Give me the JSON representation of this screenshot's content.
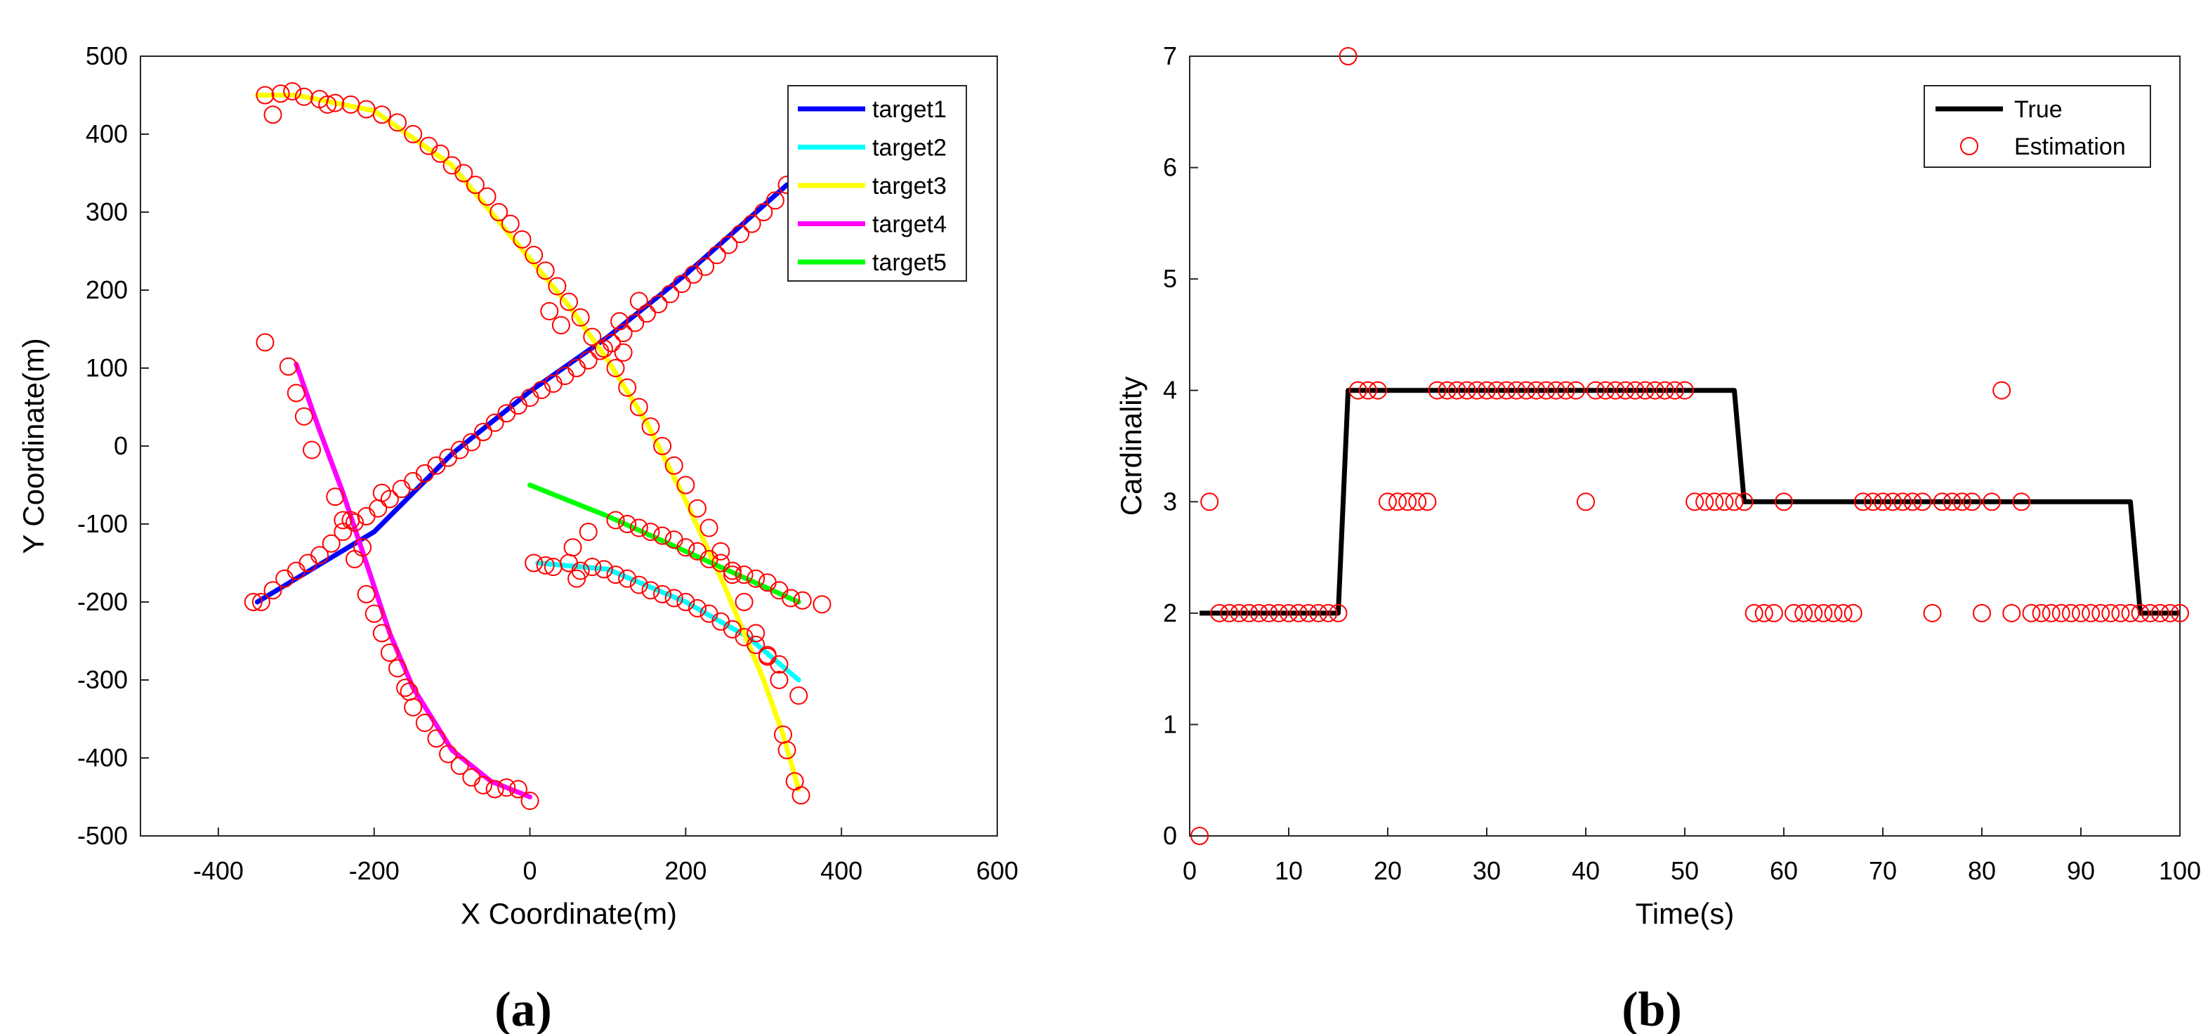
{
  "chart_data": [
    {
      "id": "a",
      "type": "scatter",
      "caption": "(a)",
      "xlabel": "X Coordinate(m)",
      "ylabel": "Y Coordinate(m)",
      "xlim": [
        -500,
        600
      ],
      "ylim": [
        -500,
        500
      ],
      "xticks": [
        -400,
        -200,
        0,
        200,
        400,
        600
      ],
      "yticks": [
        -500,
        -400,
        -300,
        -200,
        -100,
        0,
        100,
        200,
        300,
        400,
        500
      ],
      "legend": {
        "position": "top-right",
        "entries": [
          "target1",
          "target2",
          "target3",
          "target4",
          "target5"
        ]
      },
      "lines": [
        {
          "name": "target1",
          "color": "#0000ff",
          "points": [
            [
              -350,
              -200
            ],
            [
              -200,
              -110
            ],
            [
              -100,
              -10
            ],
            [
              0,
              70
            ],
            [
              100,
              140
            ],
            [
              200,
              220
            ],
            [
              330,
              335
            ]
          ]
        },
        {
          "name": "target2",
          "color": "#00ffff",
          "points": [
            [
              10,
              -150
            ],
            [
              100,
              -158
            ],
            [
              200,
              -200
            ],
            [
              280,
              -245
            ],
            [
              345,
              -300
            ]
          ]
        },
        {
          "name": "target3",
          "color": "#ffff00",
          "points": [
            [
              -350,
              450
            ],
            [
              -300,
              450
            ],
            [
              -200,
              430
            ],
            [
              -100,
              360
            ],
            [
              0,
              240
            ],
            [
              50,
              180
            ],
            [
              100,
              110
            ],
            [
              150,
              30
            ],
            [
              200,
              -70
            ],
            [
              250,
              -180
            ],
            [
              300,
              -300
            ],
            [
              325,
              -370
            ],
            [
              345,
              -440
            ]
          ]
        },
        {
          "name": "target4",
          "color": "#ff00ff",
          "points": [
            [
              -300,
              105
            ],
            [
              -270,
              20
            ],
            [
              -240,
              -60
            ],
            [
              -210,
              -150
            ],
            [
              -180,
              -240
            ],
            [
              -150,
              -310
            ],
            [
              -100,
              -390
            ],
            [
              -50,
              -430
            ],
            [
              0,
              -450
            ]
          ]
        },
        {
          "name": "target5",
          "color": "#00ff00",
          "points": [
            [
              0,
              -50
            ],
            [
              100,
              -90
            ],
            [
              200,
              -135
            ],
            [
              300,
              -180
            ],
            [
              345,
              -200
            ]
          ]
        }
      ],
      "estimates": {
        "name": "Estimation",
        "color": "#ff0000",
        "points": [
          [
            -345,
            -200
          ],
          [
            -330,
            -185
          ],
          [
            -315,
            -170
          ],
          [
            -300,
            -160
          ],
          [
            -285,
            -150
          ],
          [
            -270,
            -140
          ],
          [
            -255,
            -125
          ],
          [
            -240,
            -110
          ],
          [
            -225,
            -98
          ],
          [
            -210,
            -90
          ],
          [
            -195,
            -80
          ],
          [
            -180,
            -68
          ],
          [
            -165,
            -55
          ],
          [
            -150,
            -45
          ],
          [
            -135,
            -35
          ],
          [
            -120,
            -25
          ],
          [
            -105,
            -15
          ],
          [
            -90,
            -5
          ],
          [
            -75,
            5
          ],
          [
            -60,
            18
          ],
          [
            -45,
            30
          ],
          [
            -30,
            42
          ],
          [
            -15,
            52
          ],
          [
            0,
            62
          ],
          [
            15,
            72
          ],
          [
            30,
            80
          ],
          [
            45,
            90
          ],
          [
            60,
            100
          ],
          [
            75,
            110
          ],
          [
            90,
            122
          ],
          [
            105,
            132
          ],
          [
            120,
            145
          ],
          [
            135,
            158
          ],
          [
            150,
            170
          ],
          [
            165,
            182
          ],
          [
            180,
            195
          ],
          [
            195,
            208
          ],
          [
            210,
            220
          ],
          [
            225,
            230
          ],
          [
            240,
            245
          ],
          [
            255,
            258
          ],
          [
            270,
            272
          ],
          [
            285,
            285
          ],
          [
            300,
            300
          ],
          [
            315,
            315
          ],
          [
            330,
            335
          ],
          [
            -355,
            -200
          ],
          [
            -215,
            -130
          ],
          [
            -190,
            -60
          ],
          [
            -230,
            -95
          ],
          [
            -340,
            450
          ],
          [
            -320,
            452
          ],
          [
            -305,
            455
          ],
          [
            -290,
            448
          ],
          [
            -270,
            445
          ],
          [
            -250,
            440
          ],
          [
            -230,
            438
          ],
          [
            -210,
            432
          ],
          [
            -190,
            425
          ],
          [
            -170,
            415
          ],
          [
            -150,
            400
          ],
          [
            -130,
            385
          ],
          [
            -115,
            375
          ],
          [
            -100,
            360
          ],
          [
            -85,
            350
          ],
          [
            -70,
            335
          ],
          [
            -55,
            320
          ],
          [
            -40,
            300
          ],
          [
            -25,
            285
          ],
          [
            -10,
            265
          ],
          [
            5,
            245
          ],
          [
            20,
            225
          ],
          [
            35,
            205
          ],
          [
            50,
            185
          ],
          [
            65,
            165
          ],
          [
            80,
            140
          ],
          [
            95,
            125
          ],
          [
            110,
            100
          ],
          [
            125,
            75
          ],
          [
            140,
            50
          ],
          [
            155,
            25
          ],
          [
            170,
            0
          ],
          [
            185,
            -25
          ],
          [
            200,
            -50
          ],
          [
            215,
            -80
          ],
          [
            230,
            -105
          ],
          [
            245,
            -135
          ],
          [
            260,
            -165
          ],
          [
            275,
            -200
          ],
          [
            290,
            -240
          ],
          [
            305,
            -270
          ],
          [
            320,
            -300
          ],
          [
            325,
            -370
          ],
          [
            330,
            -390
          ],
          [
            340,
            -430
          ],
          [
            348,
            -448
          ],
          [
            -330,
            425
          ],
          [
            -260,
            438
          ],
          [
            25,
            173
          ],
          [
            140,
            186
          ],
          [
            40,
            155
          ],
          [
            115,
            160
          ],
          [
            120,
            120
          ],
          [
            -340,
            133
          ],
          [
            -310,
            102
          ],
          [
            -300,
            68
          ],
          [
            -290,
            38
          ],
          [
            -280,
            -5
          ],
          [
            -250,
            -65
          ],
          [
            -240,
            -95
          ],
          [
            -225,
            -145
          ],
          [
            -210,
            -190
          ],
          [
            -200,
            -215
          ],
          [
            -190,
            -240
          ],
          [
            -180,
            -265
          ],
          [
            -170,
            -285
          ],
          [
            -160,
            -310
          ],
          [
            -150,
            -335
          ],
          [
            -135,
            -355
          ],
          [
            -120,
            -375
          ],
          [
            -105,
            -395
          ],
          [
            -90,
            -410
          ],
          [
            -75,
            -425
          ],
          [
            -60,
            -435
          ],
          [
            -45,
            -440
          ],
          [
            -30,
            -438
          ],
          [
            -15,
            -440
          ],
          [
            0,
            -455
          ],
          [
            -155,
            -315
          ],
          [
            5,
            -150
          ],
          [
            20,
            -153
          ],
          [
            30,
            -155
          ],
          [
            50,
            -150
          ],
          [
            65,
            -160
          ],
          [
            80,
            -155
          ],
          [
            95,
            -158
          ],
          [
            110,
            -165
          ],
          [
            125,
            -170
          ],
          [
            140,
            -178
          ],
          [
            155,
            -185
          ],
          [
            170,
            -190
          ],
          [
            185,
            -195
          ],
          [
            200,
            -200
          ],
          [
            215,
            -208
          ],
          [
            230,
            -215
          ],
          [
            245,
            -225
          ],
          [
            260,
            -235
          ],
          [
            275,
            -245
          ],
          [
            290,
            -255
          ],
          [
            305,
            -268
          ],
          [
            320,
            -280
          ],
          [
            345,
            -320
          ],
          [
            60,
            -170
          ],
          [
            55,
            -130
          ],
          [
            75,
            -110
          ],
          [
            110,
            -95
          ],
          [
            125,
            -100
          ],
          [
            140,
            -105
          ],
          [
            155,
            -110
          ],
          [
            170,
            -115
          ],
          [
            185,
            -120
          ],
          [
            200,
            -130
          ],
          [
            215,
            -135
          ],
          [
            230,
            -145
          ],
          [
            245,
            -150
          ],
          [
            260,
            -160
          ],
          [
            275,
            -165
          ],
          [
            290,
            -170
          ],
          [
            305,
            -175
          ],
          [
            320,
            -185
          ],
          [
            335,
            -195
          ],
          [
            350,
            -198
          ],
          [
            375,
            -203
          ]
        ]
      }
    },
    {
      "id": "b",
      "type": "line",
      "caption": "(b)",
      "xlabel": "Time(s)",
      "ylabel": "Cardinality",
      "xlim": [
        0,
        100
      ],
      "ylim": [
        0,
        7
      ],
      "xticks": [
        0,
        10,
        20,
        30,
        40,
        50,
        60,
        70,
        80,
        90,
        100
      ],
      "yticks": [
        0,
        1,
        2,
        3,
        4,
        5,
        6,
        7
      ],
      "legend": {
        "position": "top-right",
        "entries": [
          "True",
          "Estimation"
        ]
      },
      "series": [
        {
          "name": "True",
          "color": "#000000",
          "x": [
            1,
            15,
            16,
            55,
            56,
            95,
            96,
            100
          ],
          "y": [
            2,
            2,
            4,
            4,
            3,
            3,
            2,
            2
          ]
        }
      ],
      "estimates": {
        "name": "Estimation",
        "color": "#ff0000",
        "x": [
          1,
          2,
          3,
          4,
          5,
          6,
          7,
          8,
          9,
          10,
          11,
          12,
          13,
          14,
          15,
          16,
          17,
          18,
          19,
          20,
          21,
          22,
          23,
          24,
          25,
          26,
          27,
          28,
          29,
          30,
          31,
          32,
          33,
          34,
          35,
          36,
          37,
          38,
          39,
          40,
          41,
          42,
          43,
          44,
          45,
          46,
          47,
          48,
          49,
          50,
          51,
          52,
          53,
          54,
          55,
          56,
          57,
          58,
          59,
          60,
          61,
          62,
          63,
          64,
          65,
          66,
          67,
          68,
          69,
          70,
          71,
          72,
          73,
          74,
          75,
          76,
          77,
          78,
          79,
          80,
          81,
          82,
          83,
          84,
          85,
          86,
          87,
          88,
          89,
          90,
          91,
          92,
          93,
          94,
          95,
          96,
          97,
          98,
          99,
          100
        ],
        "y": [
          0,
          3,
          2,
          2,
          2,
          2,
          2,
          2,
          2,
          2,
          2,
          2,
          2,
          2,
          2,
          7,
          4,
          4,
          4,
          3,
          3,
          3,
          3,
          3,
          4,
          4,
          4,
          4,
          4,
          4,
          4,
          4,
          4,
          4,
          4,
          4,
          4,
          4,
          4,
          3,
          4,
          4,
          4,
          4,
          4,
          4,
          4,
          4,
          4,
          4,
          3,
          3,
          3,
          3,
          3,
          3,
          2,
          2,
          2,
          3,
          2,
          2,
          2,
          2,
          2,
          2,
          2,
          3,
          3,
          3,
          3,
          3,
          3,
          3,
          2,
          3,
          3,
          3,
          3,
          2,
          3,
          4,
          2,
          3,
          2,
          2,
          2,
          2,
          2,
          2,
          2,
          2,
          2,
          2,
          2,
          2,
          2,
          2,
          2,
          2
        ]
      }
    }
  ]
}
